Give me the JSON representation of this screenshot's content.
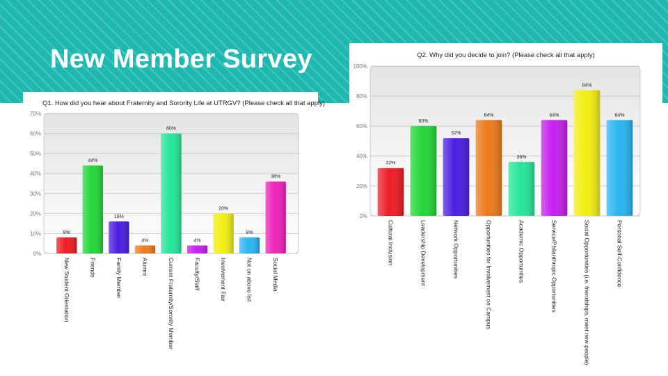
{
  "slide": {
    "title": "New Member Survey"
  },
  "chart_data": [
    {
      "type": "bar",
      "title": "Q1. How did you hear about Fraternity and Sorority Life at UTRGV? (Please check all that apply)",
      "ylim": [
        0,
        70
      ],
      "yticks": [
        0,
        10,
        20,
        30,
        40,
        50,
        60,
        70
      ],
      "ytick_labels": [
        "0%",
        "10%",
        "20%",
        "30%",
        "40%",
        "50%",
        "60%",
        "70%"
      ],
      "categories": [
        "New Student Orientation",
        "Friends",
        "Family Member",
        "Alumni",
        "Current Fraternity/Sorority Member",
        "Faculty/Staff",
        "Involvement Fair",
        "Not on above list",
        "Social Media"
      ],
      "values": [
        8,
        44,
        16,
        4,
        60,
        4,
        20,
        8,
        36
      ],
      "value_labels": [
        "8%",
        "44%",
        "16%",
        "4%",
        "60%",
        "4%",
        "20%",
        "8%",
        "36%"
      ],
      "colors": [
        "#ee1c25",
        "#22d638",
        "#4b1ee0",
        "#ec7a1a",
        "#25e69a",
        "#c61eee",
        "#f2ee12",
        "#2ab6f0",
        "#ee22b8"
      ]
    },
    {
      "type": "bar",
      "title": "Q2. Why did you decide to join? (Please check all that apply)",
      "ylim": [
        0,
        100
      ],
      "yticks": [
        0,
        20,
        40,
        60,
        80,
        100
      ],
      "ytick_labels": [
        "0%",
        "20%",
        "40%",
        "60%",
        "80%",
        "100%"
      ],
      "categories": [
        "Cultural Inclusion",
        "Leadership Development",
        "Network Opportunities",
        "Opportunities for Involvement on Campus",
        "Academic Opportunities",
        "Service/Philanthropic Opportunities",
        "Social Opportunities (i.e. friendships, meet new people)",
        "Personal Self-Confidence"
      ],
      "values": [
        32,
        60,
        52,
        64,
        36,
        64,
        84,
        64
      ],
      "value_labels": [
        "32%",
        "60%",
        "52%",
        "64%",
        "36%",
        "64%",
        "84%",
        "64%"
      ],
      "colors": [
        "#ee1c25",
        "#22d638",
        "#4b1ee0",
        "#ec7a1a",
        "#25e69a",
        "#c61eee",
        "#f2ee12",
        "#2ab6f0"
      ]
    }
  ]
}
